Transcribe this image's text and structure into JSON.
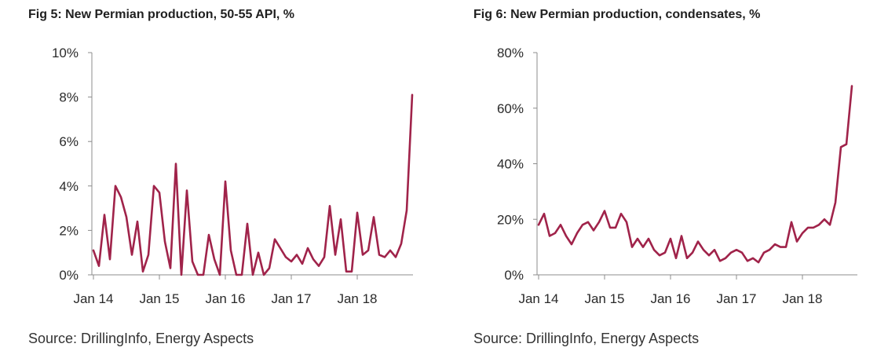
{
  "charts": [
    {
      "title": "Fig 5: New Permian production, 50-55 API, %",
      "source": "Source: DrillingInfo, Energy Aspects",
      "y_ticks": [
        "10%",
        "8%",
        "6%",
        "4%",
        "2%",
        "0%"
      ],
      "x_ticks": [
        "Jan 14",
        "Jan 15",
        "Jan 16",
        "Jan 17",
        "Jan 18"
      ]
    },
    {
      "title": "Fig 6: New Permian production, condensates, %",
      "source": "Source: DrillingInfo, Energy Aspects",
      "y_ticks": [
        "80%",
        "60%",
        "40%",
        "20%",
        "0%"
      ],
      "x_ticks": [
        "Jan 14",
        "Jan 15",
        "Jan 16",
        "Jan 17",
        "Jan 18"
      ]
    }
  ],
  "line_color": "#A0234A",
  "chart_data": [
    {
      "type": "line",
      "title": "Fig 5: New Permian production, 50-55 API, %",
      "xlabel": "",
      "ylabel": "",
      "ylim": [
        0,
        10
      ],
      "y_unit": "%",
      "x_start": "2014-01",
      "x_ticks": [
        "Jan 14",
        "Jan 15",
        "Jan 16",
        "Jan 17",
        "Jan 18"
      ],
      "grid": false,
      "series": [
        {
          "values": [
            1.1,
            0.4,
            2.7,
            0.7,
            4.0,
            3.5,
            2.6,
            0.9,
            2.4,
            0.15,
            0.9,
            4.0,
            3.7,
            1.5,
            0.3,
            5.0,
            0.0,
            3.8,
            0.6,
            0.0,
            0.0,
            1.8,
            0.7,
            0.0,
            4.2,
            1.1,
            0.0,
            0.0,
            2.3,
            0.0,
            1.0,
            0.0,
            0.3,
            1.6,
            1.2,
            0.8,
            0.6,
            0.9,
            0.5,
            1.2,
            0.7,
            0.4,
            0.8,
            3.1,
            0.9,
            2.5,
            0.15,
            0.15,
            2.8,
            0.9,
            1.1,
            2.6,
            0.9,
            0.8,
            1.1,
            0.8,
            1.4,
            2.9,
            8.1
          ]
        }
      ]
    },
    {
      "type": "line",
      "title": "Fig 6: New Permian production, condensates, %",
      "xlabel": "",
      "ylabel": "",
      "ylim": [
        0,
        80
      ],
      "y_unit": "%",
      "x_start": "2014-01",
      "x_ticks": [
        "Jan 14",
        "Jan 15",
        "Jan 16",
        "Jan 17",
        "Jan 18"
      ],
      "grid": false,
      "series": [
        {
          "values": [
            18,
            22,
            14,
            15,
            18,
            14,
            11,
            15,
            18,
            19,
            16,
            19,
            23,
            17,
            17,
            22,
            19,
            10,
            13,
            10,
            13,
            9,
            7,
            8,
            13,
            6,
            14,
            6,
            8,
            12,
            9,
            7,
            9,
            5,
            6,
            8,
            9,
            8,
            5,
            6,
            4.5,
            8,
            9,
            11,
            10,
            10,
            19,
            12,
            15,
            17,
            17,
            18,
            20,
            18,
            26,
            46,
            47,
            68
          ]
        }
      ]
    }
  ]
}
